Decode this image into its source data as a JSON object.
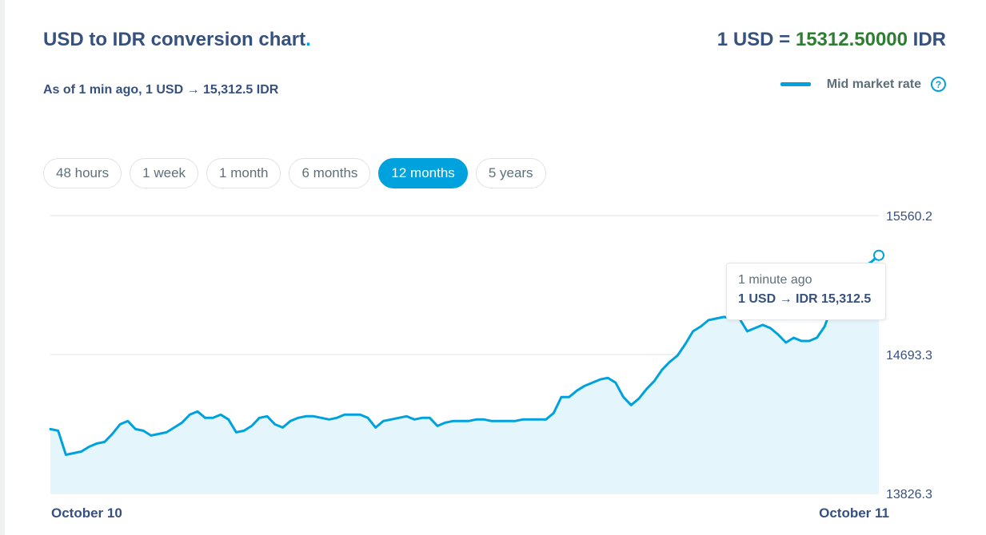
{
  "header": {
    "title": "USD to IDR conversion chart",
    "title_dot": ".",
    "rate_prefix": "1 USD = ",
    "rate_value": "15312.50000",
    "rate_suffix": " IDR",
    "as_of": "As of 1 min ago, 1 USD → 15,312.5 IDR"
  },
  "legend": {
    "label": "Mid market rate",
    "help_icon": "question-circle-icon",
    "help_glyph": "?"
  },
  "tabs": [
    {
      "label": "48 hours",
      "active": false
    },
    {
      "label": "1 week",
      "active": false
    },
    {
      "label": "1 month",
      "active": false
    },
    {
      "label": "6 months",
      "active": false
    },
    {
      "label": "12 months",
      "active": true
    },
    {
      "label": "5 years",
      "active": false
    }
  ],
  "tooltip": {
    "time": "1 minute ago",
    "value": "1 USD → IDR 15,312.5"
  },
  "colors": {
    "accent": "#00a2dd",
    "area_fill": "#e4f5fc",
    "rate_value": "#2e7d32",
    "text": "#37517e"
  },
  "chart_data": {
    "type": "area",
    "ylim": [
      13826.3,
      15560.2
    ],
    "yticks": [
      "15560.2",
      "14693.3",
      "13826.3"
    ],
    "xlabels": [
      "October 10",
      "October 11"
    ],
    "grid": true,
    "legend_position": "top-right",
    "values": [
      14228,
      14218,
      14068,
      14078,
      14088,
      14118,
      14138,
      14148,
      14198,
      14258,
      14278,
      14228,
      14218,
      14188,
      14198,
      14208,
      14238,
      14268,
      14318,
      14338,
      14298,
      14298,
      14318,
      14288,
      14208,
      14218,
      14248,
      14298,
      14308,
      14258,
      14238,
      14278,
      14298,
      14308,
      14308,
      14298,
      14288,
      14298,
      14318,
      14318,
      14318,
      14298,
      14238,
      14278,
      14288,
      14298,
      14308,
      14288,
      14298,
      14298,
      14248,
      14268,
      14278,
      14278,
      14278,
      14288,
      14288,
      14278,
      14278,
      14278,
      14278,
      14288,
      14288,
      14288,
      14288,
      14328,
      14428,
      14428,
      14468,
      14498,
      14518,
      14538,
      14548,
      14518,
      14428,
      14378,
      14418,
      14478,
      14528,
      14598,
      14648,
      14688,
      14758,
      14838,
      14868,
      14908,
      14918,
      14928,
      14918,
      14918,
      14838,
      14858,
      14878,
      14858,
      14818,
      14768,
      14798,
      14778,
      14778,
      14798,
      14868,
      15000,
      15080,
      15150,
      15200,
      15240,
      15270,
      15312.5
    ]
  }
}
